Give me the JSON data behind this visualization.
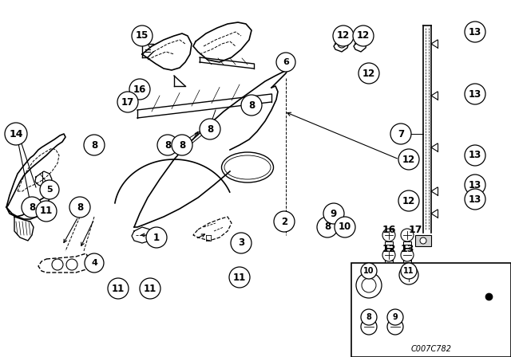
{
  "background_color": "#ffffff",
  "line_color": "#000000",
  "figure_width": 6.4,
  "figure_height": 4.48,
  "dpi": 100,
  "watermark": "C007C782",
  "callouts_main": [
    [
      "1",
      196,
      298,
      14
    ],
    [
      "2",
      356,
      276,
      14
    ],
    [
      "3",
      302,
      298,
      14
    ],
    [
      "5",
      60,
      240,
      14
    ],
    [
      "6",
      358,
      75,
      14
    ],
    [
      "7",
      502,
      165,
      14
    ],
    [
      "8",
      40,
      258,
      14
    ],
    [
      "8",
      100,
      258,
      14
    ],
    [
      "8",
      118,
      178,
      14
    ],
    [
      "8",
      210,
      178,
      14
    ],
    [
      "8",
      228,
      178,
      14
    ],
    [
      "8",
      263,
      157,
      14
    ],
    [
      "8",
      315,
      128,
      14
    ],
    [
      "9",
      415,
      265,
      14
    ],
    [
      "10",
      430,
      280,
      14
    ],
    [
      "11",
      55,
      265,
      14
    ],
    [
      "11",
      150,
      358,
      14
    ],
    [
      "11",
      190,
      358,
      14
    ],
    [
      "11",
      302,
      340,
      14
    ],
    [
      "12",
      430,
      42,
      14
    ],
    [
      "12",
      455,
      42,
      14
    ],
    [
      "12",
      460,
      90,
      14
    ],
    [
      "12",
      510,
      198,
      14
    ],
    [
      "12",
      510,
      248,
      14
    ],
    [
      "13",
      590,
      38,
      14
    ],
    [
      "13",
      590,
      115,
      14
    ],
    [
      "13",
      590,
      195,
      14
    ],
    [
      "13",
      590,
      230,
      14
    ],
    [
      "13",
      590,
      248,
      14
    ],
    [
      "14",
      22,
      165,
      16
    ],
    [
      "15",
      178,
      42,
      14
    ],
    [
      "16",
      175,
      110,
      14
    ],
    [
      "17",
      165,
      125,
      14
    ]
  ],
  "callouts_inset_legend": [
    [
      "16",
      487,
      298,
      11
    ],
    [
      "17",
      516,
      298,
      11
    ],
    [
      "12",
      487,
      318,
      11
    ],
    [
      "13",
      516,
      318,
      11
    ]
  ],
  "callouts_inset_box": [
    [
      "10",
      460,
      358,
      11
    ],
    [
      "11",
      490,
      348,
      11
    ],
    [
      "8",
      458,
      388,
      11
    ],
    [
      "9",
      480,
      388,
      11
    ]
  ]
}
